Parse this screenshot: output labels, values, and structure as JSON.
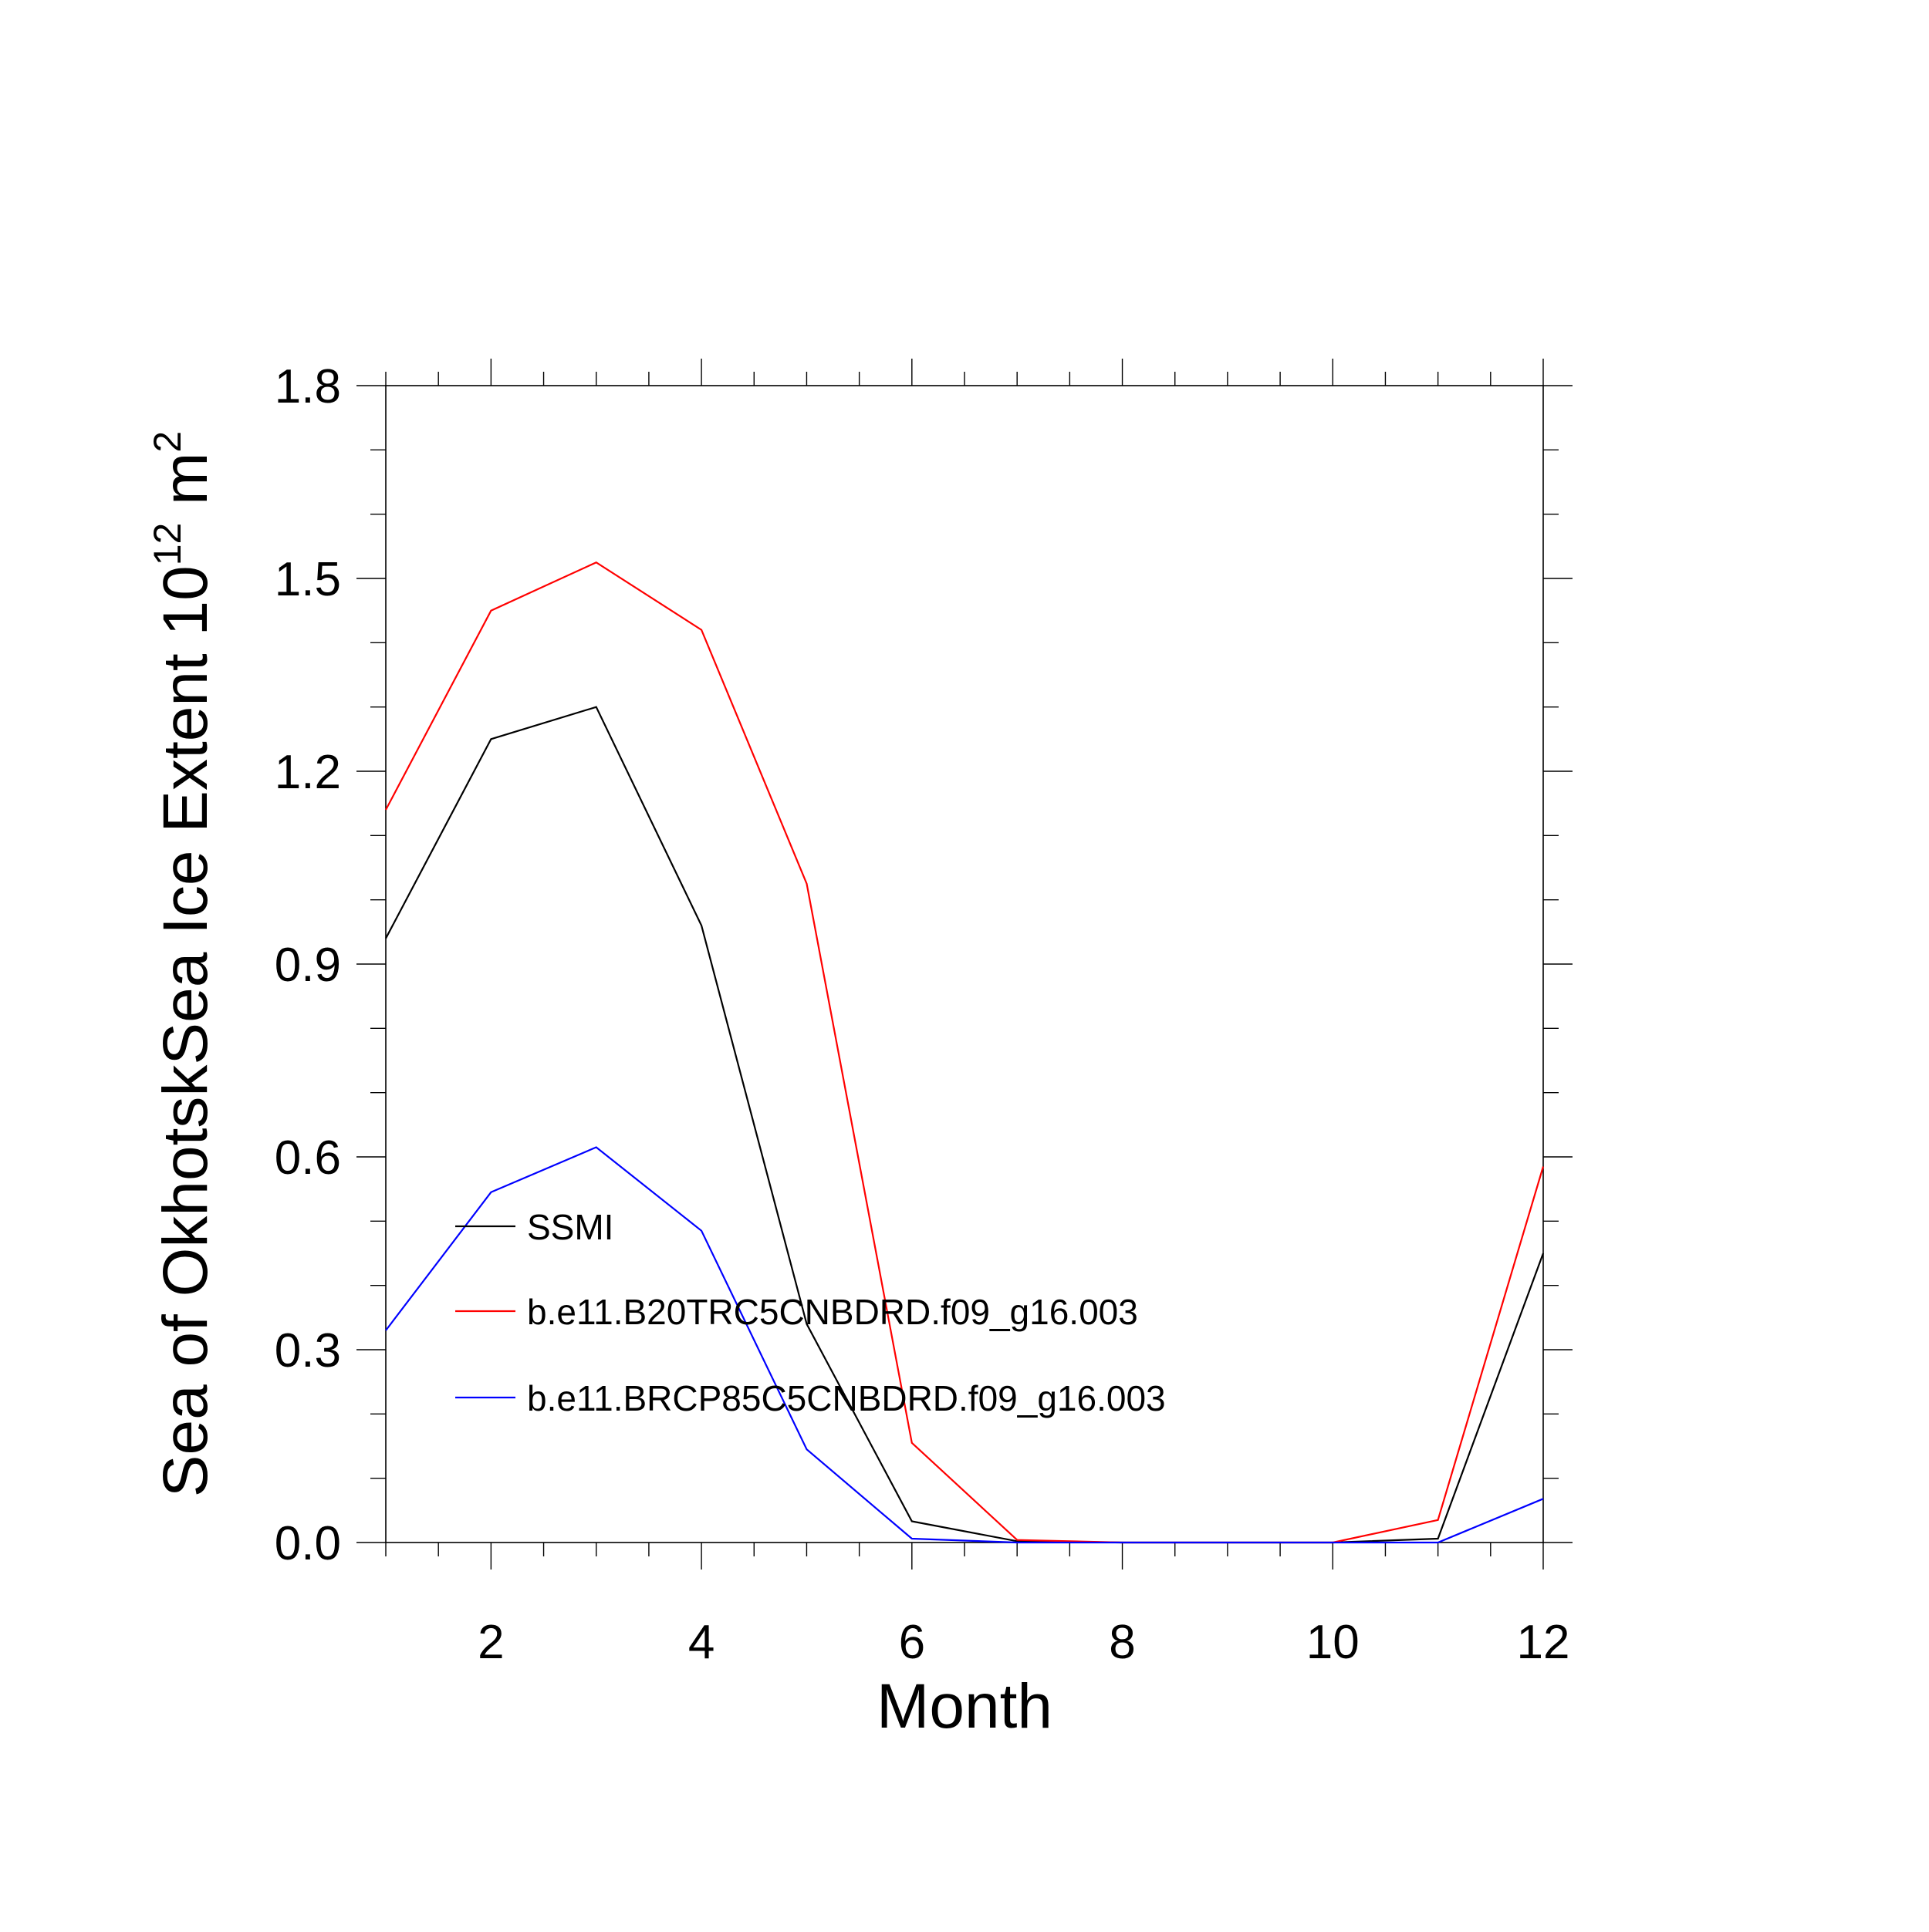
{
  "chart_data": {
    "type": "line",
    "title": "",
    "xlabel": "Month",
    "ylabel": {
      "prefix": "Sea of OkhotskSea Ice Extent 10",
      "exponent1": "12",
      "mid": " m",
      "exponent2": "2"
    },
    "xlim": [
      1,
      12
    ],
    "ylim": [
      0,
      1.8
    ],
    "x_ticks": [
      2,
      4,
      6,
      8,
      10,
      12
    ],
    "x_tick_labels": [
      "2",
      "4",
      "6",
      "8",
      "10",
      "12"
    ],
    "y_ticks": [
      0,
      0.3,
      0.6,
      0.9,
      1.2,
      1.5,
      1.8
    ],
    "y_tick_labels": [
      "0.0",
      "0.3",
      "0.6",
      "0.9",
      "1.2",
      "1.5",
      "1.8"
    ],
    "x": [
      1,
      2,
      3,
      4,
      5,
      6,
      7,
      8,
      9,
      10,
      11,
      12
    ],
    "series": [
      {
        "name": "SSMI",
        "color": "#000000",
        "values": [
          0.94,
          1.25,
          1.3,
          0.96,
          0.34,
          0.033,
          0.002,
          0.0,
          0.0,
          0.0,
          0.006,
          0.45
        ]
      },
      {
        "name": "b.e11.B20TRC5CNBDRD.f09_g16.003",
        "color": "#ff0000",
        "values": [
          1.14,
          1.45,
          1.525,
          1.42,
          1.025,
          0.155,
          0.004,
          0.0,
          0.0,
          0.0,
          0.035,
          0.585
        ]
      },
      {
        "name": "b.e11.BRCP85C5CNBDRD.f09_g16.003",
        "color": "#0000ff",
        "values": [
          0.33,
          0.545,
          0.615,
          0.485,
          0.145,
          0.006,
          0.0,
          0.0,
          0.0,
          0.0,
          0.0,
          0.068
        ]
      }
    ],
    "legend_position": "lower-left inside plot",
    "grid": false
  }
}
